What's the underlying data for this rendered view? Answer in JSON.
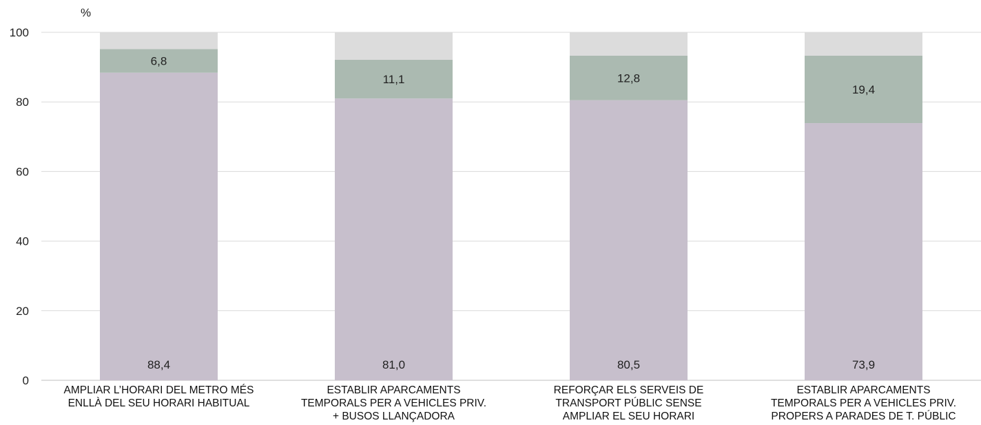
{
  "chart_data": {
    "type": "bar",
    "stacked": true,
    "ylabel": "%",
    "ylim": [
      0,
      100
    ],
    "yticks": [
      0,
      20,
      40,
      60,
      80,
      100
    ],
    "grid": true,
    "categories": [
      [
        "AMPLIAR L’HORARI DEL METRO MÉS",
        "ENLLÀ DEL SEU HORARI HABITUAL"
      ],
      [
        "ESTABLIR APARCAMENTS",
        "TEMPORALS PER A VEHICLES PRIV.",
        "+ BUSOS LLANÇADORA"
      ],
      [
        "REFORÇAR ELS SERVEIS DE",
        "TRANSPORT PÚBLIC SENSE",
        "AMPLIAR EL SEU HORARI"
      ],
      [
        "ESTABLIR APARCAMENTS",
        "TEMPORALS PER A VEHICLES PRIV.",
        "PROPERS A PARADES DE T. PÚBLIC"
      ]
    ],
    "series": [
      {
        "values": [
          88.4,
          81.0,
          80.5,
          73.9
        ],
        "labels": [
          "88,4",
          "81,0",
          "80,5",
          "73,9"
        ],
        "color": "#c7bfcc"
      },
      {
        "values": [
          6.8,
          11.1,
          12.8,
          19.4
        ],
        "labels": [
          "6,8",
          "11,1",
          "12,8",
          "19,4"
        ],
        "color": "#abbab1"
      },
      {
        "values": [
          4.8,
          7.9,
          6.7,
          6.7
        ],
        "labels": [
          "",
          "",
          "",
          ""
        ],
        "color": "#dcdcdc"
      }
    ]
  }
}
